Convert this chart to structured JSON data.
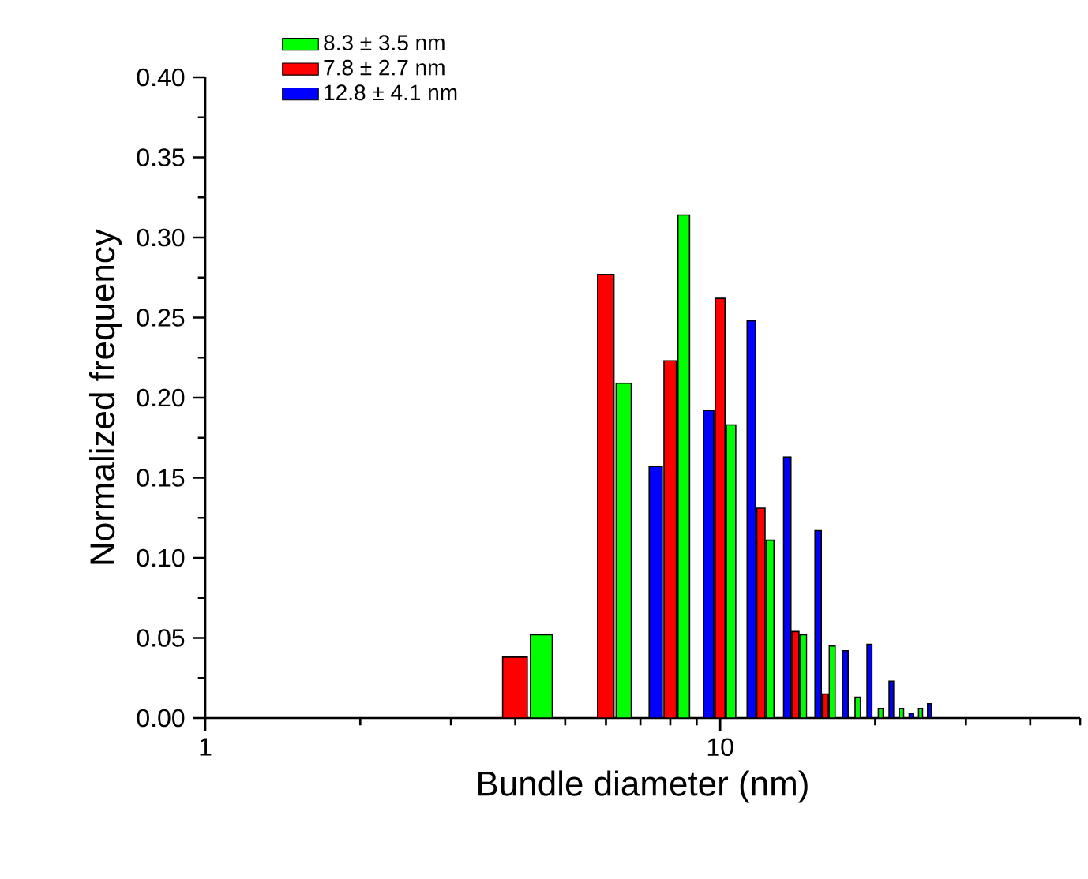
{
  "chart_data": {
    "type": "bar",
    "xlabel": "Bundle diameter (nm)",
    "ylabel": "Normalized frequency",
    "log": "x",
    "legend": "top left",
    "xlim": [
      1,
      50
    ],
    "xticks": [
      1,
      {
        "value": 2,
        "label": null
      },
      {
        "value": 3,
        "label": null
      },
      {
        "value": 4,
        "label": null
      },
      {
        "value": 5,
        "label": null
      },
      {
        "value": 6,
        "label": null
      },
      {
        "value": 7,
        "label": null
      },
      {
        "value": 8,
        "label": null
      },
      {
        "value": 9,
        "label": null
      },
      10,
      {
        "value": 20,
        "label": null
      },
      {
        "value": 30,
        "label": null
      },
      {
        "value": 40,
        "label": null
      },
      {
        "value": 50,
        "label": null
      }
    ],
    "ylim": [
      0,
      0.4
    ],
    "yticks": [
      {
        "value": 0,
        "label": "0.00"
      },
      {
        "value": 0.025,
        "label": null
      },
      {
        "value": 0.05,
        "label": "0.05"
      },
      {
        "value": 0.075,
        "label": null
      },
      {
        "value": 0.1,
        "label": "0.10"
      },
      {
        "value": 0.125,
        "label": null
      },
      {
        "value": 0.15,
        "label": "0.15"
      },
      {
        "value": 0.175,
        "label": null
      },
      {
        "value": 0.2,
        "label": "0.20"
      },
      {
        "value": 0.225,
        "label": null
      },
      {
        "value": 0.25,
        "label": "0.25"
      },
      {
        "value": 0.275,
        "label": null
      },
      {
        "value": 0.3,
        "label": "0.30"
      },
      {
        "value": 0.325,
        "label": null
      },
      {
        "value": 0.35,
        "label": "0.35"
      },
      {
        "value": 0.375,
        "label": null
      },
      {
        "value": 0.4,
        "label": "0.40"
      }
    ],
    "series": [
      {
        "name": "8.3 ± 3.5 nm",
        "color": "#00ff00",
        "x": [
          4.5,
          6.5,
          8.5,
          10.5,
          12.5,
          14.5,
          16.5,
          18.5,
          20.5,
          22.5,
          24.5
        ],
        "values": [
          0.052,
          0.209,
          0.314,
          0.183,
          0.111,
          0.052,
          0.045,
          0.013,
          0.006,
          0.006,
          0.006
        ]
      },
      {
        "name": "7.8 ± 2.7 nm",
        "color": "#ff0000",
        "x": [
          4,
          6,
          8,
          10,
          12,
          14,
          16
        ],
        "values": [
          0.038,
          0.277,
          0.223,
          0.262,
          0.131,
          0.054,
          0.015
        ]
      },
      {
        "name": "12.8 ± 4.1 nm",
        "color": "#0000ff",
        "x": [
          7.5,
          9.5,
          11.5,
          13.5,
          15.5,
          17.5,
          19.5,
          21.5,
          23.5,
          25.5
        ],
        "values": [
          0.157,
          0.192,
          0.248,
          0.163,
          0.117,
          0.042,
          0.046,
          0.023,
          0.003,
          0.009
        ]
      }
    ]
  }
}
